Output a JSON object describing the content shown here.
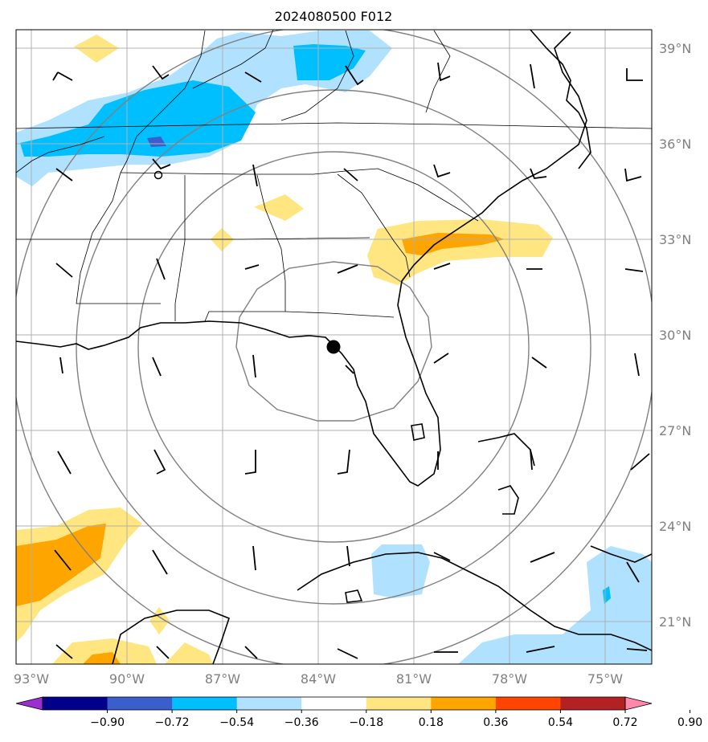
{
  "title": "2024080500 F012",
  "lat_labels": [
    "39°N",
    "36°N",
    "33°N",
    "30°N",
    "27°N",
    "24°N",
    "21°N"
  ],
  "lon_labels": [
    "93°W",
    "90°W",
    "87°W",
    "84°W",
    "81°W",
    "78°W",
    "75°W"
  ],
  "colorbar": {
    "ticks": [
      "−0.90",
      "−0.72",
      "−0.54",
      "−0.36",
      "−0.18",
      "0.18",
      "0.36",
      "0.54",
      "0.72",
      "0.90"
    ],
    "colors": [
      "#9b30d0",
      "#00008b",
      "#3a5fcd",
      "#00bfff",
      "#b0e2ff",
      "#ffffff",
      "#ffe680",
      "#ffa500",
      "#ff4500",
      "#b22222",
      "#ff88aa"
    ]
  },
  "storm_center": {
    "lat": 29.6,
    "lon": -83.4
  },
  "colors": {
    "grid": "#b0b0b0",
    "range_rings": "#808080",
    "coast": "#000000",
    "tick_label": "#808080"
  }
}
